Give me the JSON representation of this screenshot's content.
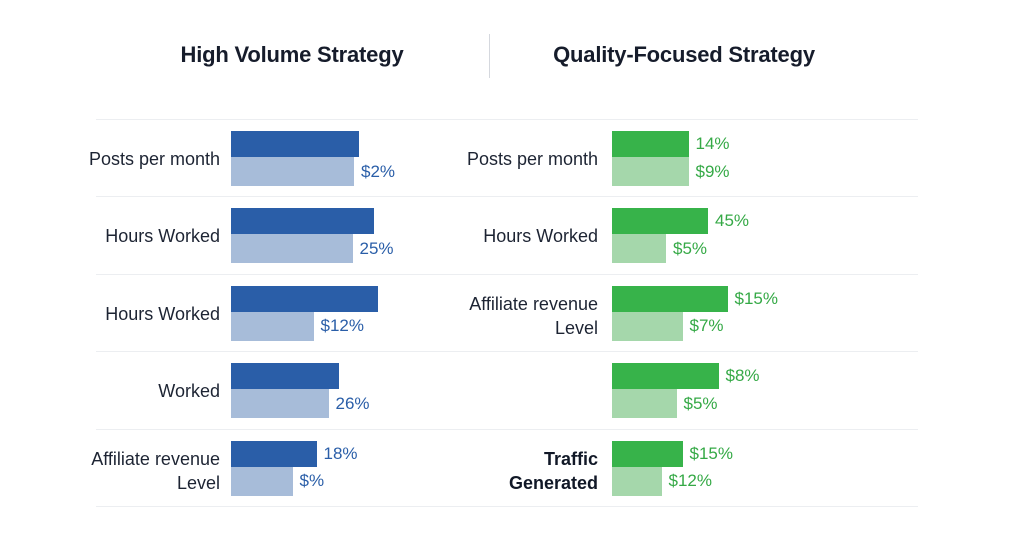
{
  "chart_data": [
    {
      "type": "bar",
      "orientation": "horizontal",
      "title": "High Volume Strategy",
      "colors": {
        "primary": "#2a5ea8",
        "secondary": "#a7bcd9",
        "label": "#2a5ea8"
      },
      "categories": [
        "Posts per month",
        "Hours Worked",
        "Hours Worked",
        "Worked",
        "Affiliate revenue\nLevel"
      ],
      "category_bold": [
        false,
        false,
        false,
        false,
        false
      ],
      "series": [
        {
          "levels": [
            0.85,
            0.95,
            0.98,
            0.72,
            0.57
          ],
          "labels": [
            null,
            null,
            null,
            null,
            "18%"
          ]
        },
        {
          "levels": [
            0.82,
            0.81,
            0.55,
            0.65,
            0.41
          ],
          "labels": [
            "$2%",
            "25%",
            "$12%",
            "26%",
            "$%"
          ]
        }
      ]
    },
    {
      "type": "bar",
      "orientation": "horizontal",
      "title": "Quality-Focused Strategy",
      "colors": {
        "primary": "#37b34a",
        "secondary": "#a5d7ab",
        "label": "#35a946"
      },
      "categories": [
        "Posts per month",
        "Hours Worked",
        "Affiliate revenue\nLevel",
        "",
        "Traffic\nGenerated"
      ],
      "category_bold": [
        false,
        false,
        false,
        false,
        true
      ],
      "series": [
        {
          "levels": [
            0.51,
            0.64,
            0.77,
            0.71,
            0.47
          ],
          "labels": [
            "14%",
            "45%",
            "$15%",
            "$8%",
            "$15%"
          ]
        },
        {
          "levels": [
            0.51,
            0.36,
            0.47,
            0.43,
            0.33
          ],
          "labels": [
            "$9%",
            "$5%",
            "$7%",
            "$5%",
            "$12%"
          ]
        }
      ]
    }
  ]
}
